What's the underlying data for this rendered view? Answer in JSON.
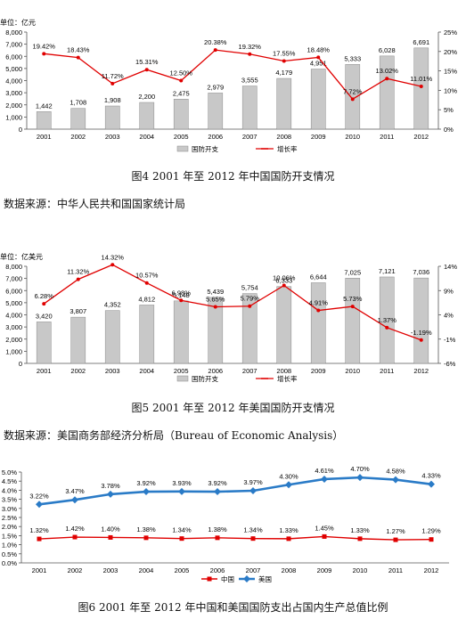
{
  "captions": {
    "fig4": "图4  2001 年至 2012 年中国国防开支情况",
    "fig5": "图5  2001 年至 2012 年美国国防开支情况",
    "fig6": "图6  2001 年至 2012 年中国和美国国防支出占国内生产总值比例"
  },
  "sources": {
    "fig4": "数据来源：中华人民共和国国家统计局",
    "fig5": "数据来源：美国商务部经济分析局（Bureau of Economic Analysis）"
  },
  "chart_data": [
    {
      "type": "bar",
      "unit_label": "单位：亿元",
      "categories": [
        "2001",
        "2002",
        "2003",
        "2004",
        "2005",
        "2006",
        "2007",
        "2008",
        "2009",
        "2010",
        "2011",
        "2012"
      ],
      "series": [
        {
          "name": "国防开支",
          "type": "bar",
          "axis": "left",
          "values": [
            1442,
            1708,
            1908,
            2200,
            2475,
            2979,
            3555,
            4179,
            4951,
            5333,
            6028,
            6691
          ],
          "labels": [
            "1,442",
            "1,708",
            "1,908",
            "2,200",
            "2,475",
            "2,979",
            "3,555",
            "4,179",
            "4,951",
            "5,333",
            "6,028",
            "6,691"
          ]
        },
        {
          "name": "增长率",
          "type": "line",
          "axis": "right",
          "values": [
            19.42,
            18.43,
            11.72,
            15.31,
            12.5,
            20.38,
            19.32,
            17.55,
            18.48,
            7.72,
            13.02,
            11.01
          ],
          "labels": [
            "19.42%",
            "18.43%",
            "11.72%",
            "15.31%",
            "12.50%",
            "20.38%",
            "19.32%",
            "17.55%",
            "18.48%",
            "7.72%",
            "13.02%",
            "11.01%"
          ]
        }
      ],
      "ylim": [
        0,
        8000
      ],
      "yticks": [
        0,
        1000,
        2000,
        3000,
        4000,
        5000,
        6000,
        7000,
        8000
      ],
      "ytick_labels": [
        "0",
        "1,000",
        "2,000",
        "3,000",
        "4,000",
        "5,000",
        "6,000",
        "7,000",
        "8,000"
      ],
      "y2lim": [
        0,
        25
      ],
      "y2ticks": [
        0,
        5,
        10,
        15,
        20,
        25
      ],
      "y2tick_labels": [
        "0%",
        "5%",
        "10%",
        "15%",
        "20%",
        "25%"
      ],
      "colors": {
        "bar": "#c8c8c8",
        "line": "#e00000"
      },
      "legend_position": "bottom"
    },
    {
      "type": "bar",
      "unit_label": "单位：亿美元",
      "categories": [
        "2001",
        "2002",
        "2003",
        "2004",
        "2005",
        "2006",
        "2007",
        "2008",
        "2009",
        "2010",
        "2011",
        "2012"
      ],
      "series": [
        {
          "name": "国防开支",
          "type": "bar",
          "axis": "left",
          "values": [
            3420,
            3807,
            4352,
            4812,
            5148,
            5439,
            5754,
            6333,
            6644,
            7025,
            7121,
            7036
          ],
          "labels": [
            "3,420",
            "3,807",
            "4,352",
            "4,812",
            "5,148",
            "5,439",
            "5,754",
            "6,333",
            "6,644",
            "7,025",
            "7,121",
            "7,036"
          ]
        },
        {
          "name": "增长率",
          "type": "line",
          "axis": "right",
          "values": [
            6.28,
            11.32,
            14.32,
            10.57,
            6.98,
            5.65,
            5.79,
            10.06,
            4.91,
            5.73,
            1.37,
            -1.19
          ],
          "labels": [
            "6.28%",
            "11.32%",
            "14.32%",
            "10.57%",
            "6.98%",
            "5.65%",
            "5.79%",
            "10.06%",
            "4.91%",
            "5.73%",
            "1.37%",
            "-1.19%"
          ]
        }
      ],
      "ylim": [
        0,
        8000
      ],
      "yticks": [
        0,
        1000,
        2000,
        3000,
        4000,
        5000,
        6000,
        7000,
        8000
      ],
      "ytick_labels": [
        "0",
        "1,000",
        "2,000",
        "3,000",
        "4,000",
        "5,000",
        "6,000",
        "7,000",
        "8,000"
      ],
      "y2lim": [
        -6,
        14
      ],
      "y2ticks": [
        -6,
        -1,
        4,
        9,
        14
      ],
      "y2tick_labels": [
        "-6%",
        "-1%",
        "4%",
        "9%",
        "14%"
      ],
      "colors": {
        "bar": "#c8c8c8",
        "line": "#e00000"
      },
      "legend_position": "bottom"
    },
    {
      "type": "line",
      "categories": [
        "2001",
        "2002",
        "2003",
        "2004",
        "2005",
        "2006",
        "2007",
        "2008",
        "2009",
        "2010",
        "2011",
        "2012"
      ],
      "series": [
        {
          "name": "中国",
          "values": [
            1.32,
            1.42,
            1.4,
            1.38,
            1.34,
            1.38,
            1.34,
            1.33,
            1.45,
            1.33,
            1.27,
            1.29
          ],
          "labels": [
            "1.32%",
            "1.42%",
            "1.40%",
            "1.38%",
            "1.34%",
            "1.38%",
            "1.34%",
            "1.33%",
            "1.45%",
            "1.33%",
            "1.27%",
            "1.29%"
          ],
          "color": "#e00000"
        },
        {
          "name": "美国",
          "values": [
            3.22,
            3.47,
            3.78,
            3.92,
            3.93,
            3.92,
            3.97,
            4.3,
            4.61,
            4.7,
            4.58,
            4.33
          ],
          "labels": [
            "3.22%",
            "3.47%",
            "3.78%",
            "3.92%",
            "3.93%",
            "3.92%",
            "3.97%",
            "4.30%",
            "4.61%",
            "4.70%",
            "4.58%",
            "4.33%"
          ],
          "color": "#2a7bc7"
        }
      ],
      "ylim": [
        0,
        5
      ],
      "yticks": [
        0,
        0.5,
        1,
        1.5,
        2,
        2.5,
        3,
        3.5,
        4,
        4.5,
        5
      ],
      "ytick_labels": [
        "0.0%",
        "0.5%",
        "1.0%",
        "1.5%",
        "2.0%",
        "2.5%",
        "3.0%",
        "3.5%",
        "4.0%",
        "4.5%",
        "5.0%"
      ],
      "legend_position": "bottom"
    }
  ]
}
